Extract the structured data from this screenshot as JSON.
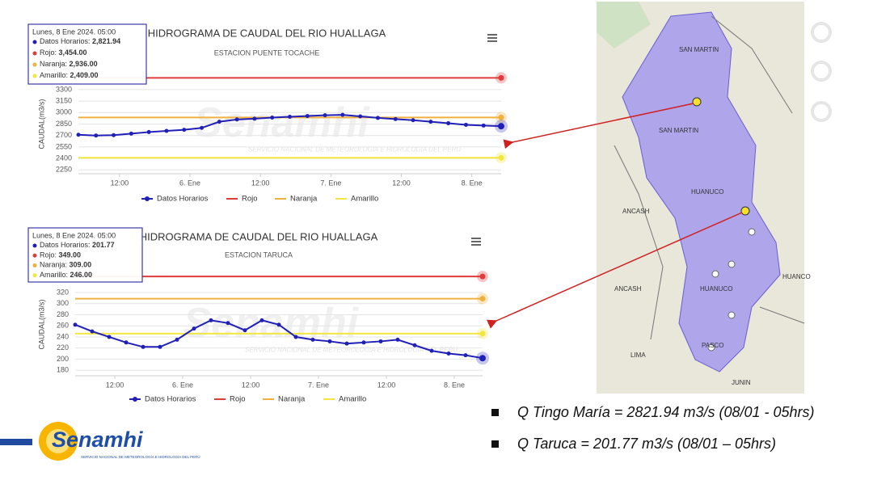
{
  "chart_data": [
    {
      "type": "line",
      "title": "HIDROGRAMA DE CAUDAL DEL RIO HUALLAGA",
      "subtitle": "ESTACION PUENTE TOCACHE",
      "y_label": "CAUDAL(m3/s)",
      "watermark": "Senamhi",
      "watermark_sub": "SERVICIO NACIONAL DE METEOROLOGIA E HIDROLOGIA DEL PERU",
      "tooltip_title": "Lunes, 8 Ene 2024. 05:00",
      "x": [
        "2024-01-05T05:00",
        "2024-01-05T08:00",
        "2024-01-05T11:00",
        "2024-01-05T14:00",
        "2024-01-05T17:00",
        "2024-01-05T20:00",
        "2024-01-05T23:00",
        "2024-01-06T02:00",
        "2024-01-06T05:00",
        "2024-01-06T08:00",
        "2024-01-06T11:00",
        "2024-01-06T14:00",
        "2024-01-06T17:00",
        "2024-01-06T20:00",
        "2024-01-06T23:00",
        "2024-01-07T02:00",
        "2024-01-07T05:00",
        "2024-01-07T08:00",
        "2024-01-07T11:00",
        "2024-01-07T14:00",
        "2024-01-07T17:00",
        "2024-01-07T20:00",
        "2024-01-07T23:00",
        "2024-01-08T02:00",
        "2024-01-08T05:00"
      ],
      "series": [
        {
          "name": "Datos Horarios",
          "color": "#2020b8",
          "tooltip_label": "2,821.94",
          "values": [
            2710,
            2700,
            2705,
            2725,
            2745,
            2760,
            2775,
            2800,
            2880,
            2910,
            2920,
            2935,
            2945,
            2955,
            2965,
            2970,
            2950,
            2930,
            2915,
            2900,
            2880,
            2860,
            2840,
            2830,
            2821.94
          ]
        }
      ],
      "thresholds": [
        {
          "name": "Rojo",
          "color": "#e03c3c",
          "value": 3454,
          "tooltip_label": "3,454.00"
        },
        {
          "name": "Naranja",
          "color": "#f0b040",
          "value": 2936,
          "tooltip_label": "2,936.00"
        },
        {
          "name": "Amarillo",
          "color": "#f2e640",
          "value": 2409,
          "tooltip_label": "2,409.00"
        }
      ],
      "xlim": [
        "2024-01-05T05:00",
        "2024-01-08T05:00"
      ],
      "xticks": [
        {
          "value": "2024-01-05T12:00",
          "label": "12:00"
        },
        {
          "value": "2024-01-06T00:00",
          "label": "6. Ene"
        },
        {
          "value": "2024-01-06T12:00",
          "label": "12:00"
        },
        {
          "value": "2024-01-07T00:00",
          "label": "7. Ene"
        },
        {
          "value": "2024-01-07T12:00",
          "label": "12:00"
        },
        {
          "value": "2024-01-08T00:00",
          "label": "8. Ene"
        }
      ],
      "ylim": [
        2200,
        3500
      ],
      "yticks": [
        2250,
        2400,
        2550,
        2700,
        2850,
        3000,
        3150,
        3300
      ],
      "grid": true
    },
    {
      "type": "line",
      "title": "HIDROGRAMA DE CAUDAL DEL RIO HUALLAGA",
      "subtitle": "ESTACION TARUCA",
      "y_label": "CAUDAL(m3/s)",
      "watermark": "Senamhi",
      "watermark_sub": "SERVICIO NACIONAL DE METEOROLOGIA E HIDROLOGIA DEL PERU",
      "tooltip_title": "Lunes, 8 Ene 2024. 05:00",
      "x": [
        "2024-01-05T05:00",
        "2024-01-05T08:00",
        "2024-01-05T11:00",
        "2024-01-05T14:00",
        "2024-01-05T17:00",
        "2024-01-05T20:00",
        "2024-01-05T23:00",
        "2024-01-06T02:00",
        "2024-01-06T05:00",
        "2024-01-06T08:00",
        "2024-01-06T11:00",
        "2024-01-06T14:00",
        "2024-01-06T17:00",
        "2024-01-06T20:00",
        "2024-01-06T23:00",
        "2024-01-07T02:00",
        "2024-01-07T05:00",
        "2024-01-07T08:00",
        "2024-01-07T11:00",
        "2024-01-07T14:00",
        "2024-01-07T17:00",
        "2024-01-07T20:00",
        "2024-01-07T23:00",
        "2024-01-08T02:00",
        "2024-01-08T05:00"
      ],
      "series": [
        {
          "name": "Datos Horarios",
          "color": "#2020b8",
          "tooltip_label": "201.77",
          "values": [
            262,
            250,
            240,
            230,
            222,
            222,
            235,
            255,
            270,
            265,
            252,
            270,
            262,
            240,
            235,
            232,
            228,
            230,
            232,
            235,
            225,
            215,
            210,
            207,
            201.77
          ]
        }
      ],
      "thresholds": [
        {
          "name": "Rojo",
          "color": "#e03c3c",
          "value": 349,
          "tooltip_label": "349.00"
        },
        {
          "name": "Naranja",
          "color": "#f0b040",
          "value": 309,
          "tooltip_label": "309.00"
        },
        {
          "name": "Amarillo",
          "color": "#f2e640",
          "value": 246,
          "tooltip_label": "246.00"
        }
      ],
      "xlim": [
        "2024-01-05T05:00",
        "2024-01-08T05:00"
      ],
      "xticks": [
        {
          "value": "2024-01-05T12:00",
          "label": "12:00"
        },
        {
          "value": "2024-01-06T00:00",
          "label": "6. Ene"
        },
        {
          "value": "2024-01-06T12:00",
          "label": "12:00"
        },
        {
          "value": "2024-01-07T00:00",
          "label": "7. Ene"
        },
        {
          "value": "2024-01-07T12:00",
          "label": "12:00"
        },
        {
          "value": "2024-01-08T00:00",
          "label": "8. Ene"
        }
      ],
      "ylim": [
        170,
        355
      ],
      "yticks": [
        180,
        200,
        220,
        240,
        260,
        280,
        300,
        320
      ],
      "grid": true
    }
  ],
  "map": {
    "labels": [
      "SAN MARTIN",
      "SAN MARTIN",
      "HUANUCO",
      "ANCASH",
      "ANCASH",
      "HUANUCO",
      "LIMA",
      "PASCO",
      "JUNIN",
      "HUANCO"
    ]
  },
  "notes": [
    "Q Tingo María = 2821.94 m3/s (08/01 - 05hrs)",
    "Q Taruca = 201.77 m3/s (08/01 – 05hrs)"
  ],
  "logo": {
    "name": "Senamhi",
    "tagline": "SERVICIO NACIONAL DE METEOROLOGÍA E HIDROLOGÍA DEL PERÚ"
  }
}
